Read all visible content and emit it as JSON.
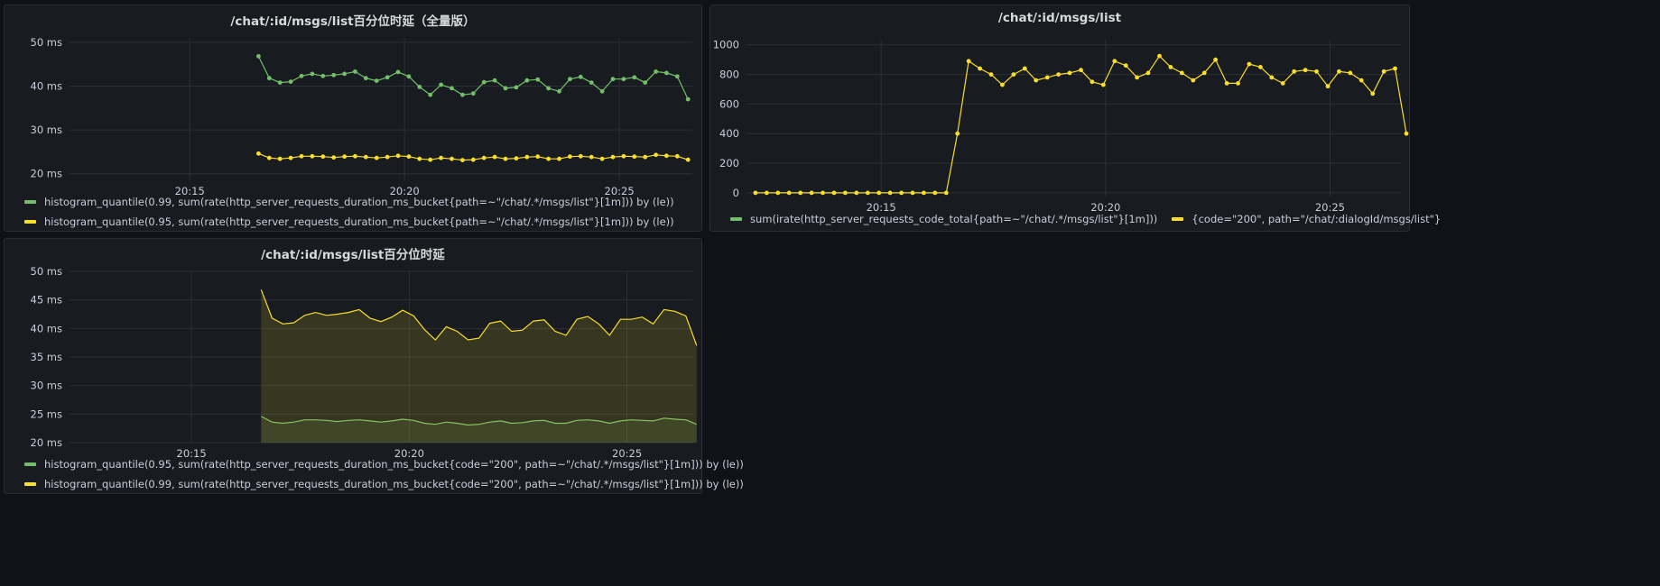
{
  "colors": {
    "green": "#73bf69",
    "yellow": "#fade2a"
  },
  "panels": {
    "p1": {
      "title": "/chat/:id/msgs/list百分位时延（全量版）",
      "legend": [
        "histogram_quantile(0.99, sum(rate(http_server_requests_duration_ms_bucket{path=~\"/chat/.*/msgs/list\"}[1m])) by (le))",
        "histogram_quantile(0.95, sum(rate(http_server_requests_duration_ms_bucket{path=~\"/chat/.*/msgs/list\"}[1m])) by (le))"
      ]
    },
    "p2": {
      "title": "/chat/:id/msgs/list",
      "legend": [
        "sum(irate(http_server_requests_code_total{path=~\"/chat/.*/msgs/list\"}[1m]))",
        "{code=\"200\", path=\"/chat/:dialogId/msgs/list\"}"
      ]
    },
    "p3": {
      "title": "/chat/:id/msgs/list百分位时延",
      "legend": [
        "histogram_quantile(0.95, sum(rate(http_server_requests_duration_ms_bucket{code=\"200\", path=~\"/chat/.*/msgs/list\"}[1m])) by (le))",
        "histogram_quantile(0.99, sum(rate(http_server_requests_duration_ms_bucket{code=\"200\", path=~\"/chat/.*/msgs/list\"}[1m])) by (le))"
      ]
    }
  },
  "chart_data": [
    {
      "type": "line",
      "title": "/chat/:id/msgs/list百分位时延（全量版）",
      "x_ticks": [
        "20:15",
        "20:20",
        "20:25"
      ],
      "y_ticks": [
        "20 ms",
        "30 ms",
        "40 ms",
        "50 ms"
      ],
      "ylim": [
        18.5,
        51
      ],
      "x_range_minutes": [
        12.2,
        26.7
      ],
      "x_start_minutes": 16.6,
      "x_step_minutes": 0.25,
      "points": true,
      "series": [
        {
          "name": "histogram_quantile(0.99, sum(rate(http_server_requests_duration_ms_bucket{path=~\"/chat/.*/msgs/list\"}[1m])) by (le))",
          "color": "green",
          "values": [
            46.8,
            41.8,
            40.8,
            41,
            42.3,
            42.8,
            42.3,
            42.5,
            42.8,
            43.3,
            41.8,
            41.2,
            42,
            43.2,
            42.2,
            39.8,
            38,
            40.3,
            39.5,
            38,
            38.3,
            40.9,
            41.3,
            39.5,
            39.7,
            41.3,
            41.5,
            39.5,
            38.8,
            41.6,
            42.1,
            40.8,
            38.8,
            41.6,
            41.6,
            42,
            40.8,
            43.3,
            43,
            42.2,
            37
          ]
        },
        {
          "name": "histogram_quantile(0.95, sum(rate(http_server_requests_duration_ms_bucket{path=~\"/chat/.*/msgs/list\"}[1m])) by (le))",
          "color": "yellow",
          "values": [
            24.6,
            23.6,
            23.4,
            23.6,
            24,
            24,
            23.9,
            23.7,
            23.9,
            24,
            23.8,
            23.6,
            23.8,
            24.1,
            23.9,
            23.4,
            23.2,
            23.6,
            23.4,
            23.1,
            23.2,
            23.6,
            23.8,
            23.4,
            23.5,
            23.8,
            23.9,
            23.4,
            23.4,
            23.9,
            24,
            23.8,
            23.4,
            23.8,
            24,
            23.9,
            23.8,
            24.3,
            24.1,
            24,
            23.2
          ]
        }
      ]
    },
    {
      "type": "line",
      "title": "/chat/:id/msgs/list",
      "x_ticks": [
        "20:15",
        "20:20",
        "20:25"
      ],
      "y_ticks": [
        "0",
        "200",
        "400",
        "600",
        "800",
        "1000"
      ],
      "ylim": [
        -25,
        1035
      ],
      "x_range_minutes": [
        12.0,
        26.6
      ],
      "x_start_minutes": 12.2,
      "x_step_minutes": 0.25,
      "points": true,
      "series": [
        {
          "name": "sum(irate(http_server_requests_code_total{path=~\"/chat/.*/msgs/list\"}[1m]))",
          "color": "green",
          "values": []
        },
        {
          "name": "{code=\"200\", path=\"/chat/:dialogId/msgs/list\"}",
          "color": "yellow",
          "values": [
            0,
            0,
            0,
            0,
            0,
            0,
            0,
            0,
            0,
            0,
            0,
            0,
            0,
            0,
            0,
            0,
            0,
            0,
            400,
            890,
            840,
            800,
            730,
            800,
            840,
            760,
            780,
            800,
            810,
            830,
            750,
            730,
            890,
            860,
            780,
            810,
            925,
            850,
            810,
            760,
            810,
            900,
            740,
            740,
            870,
            850,
            780,
            740,
            820,
            830,
            820,
            720,
            820,
            810,
            760,
            670,
            820,
            840,
            400
          ]
        }
      ]
    },
    {
      "type": "area",
      "title": "/chat/:id/msgs/list百分位时延",
      "x_ticks": [
        "20:15",
        "20:20",
        "20:25"
      ],
      "y_ticks": [
        "20 ms",
        "25 ms",
        "30 ms",
        "35 ms",
        "40 ms",
        "45 ms",
        "50 ms"
      ],
      "ylim": [
        20,
        50
      ],
      "x_range_minutes": [
        12.2,
        26.5
      ],
      "x_start_minutes": 16.6,
      "x_step_minutes": 0.25,
      "points": false,
      "series": [
        {
          "name": "histogram_quantile(0.95, sum(rate(http_server_requests_duration_ms_bucket{code=\"200\", path=~\"/chat/.*/msgs/list\"}[1m])) by (le))",
          "color": "green",
          "values": [
            24.6,
            23.6,
            23.4,
            23.6,
            24,
            24,
            23.9,
            23.7,
            23.9,
            24,
            23.8,
            23.6,
            23.8,
            24.1,
            23.9,
            23.4,
            23.2,
            23.6,
            23.4,
            23.1,
            23.2,
            23.6,
            23.8,
            23.4,
            23.5,
            23.8,
            23.9,
            23.4,
            23.4,
            23.9,
            24,
            23.8,
            23.4,
            23.8,
            24,
            23.9,
            23.8,
            24.3,
            24.1,
            24,
            23.2
          ]
        },
        {
          "name": "histogram_quantile(0.99, sum(rate(http_server_requests_duration_ms_bucket{code=\"200\", path=~\"/chat/.*/msgs/list\"}[1m])) by (le))",
          "color": "yellow",
          "values": [
            46.8,
            41.8,
            40.8,
            41,
            42.3,
            42.8,
            42.3,
            42.5,
            42.8,
            43.3,
            41.8,
            41.2,
            42,
            43.2,
            42.2,
            39.8,
            38,
            40.3,
            39.5,
            38,
            38.3,
            40.9,
            41.3,
            39.5,
            39.7,
            41.3,
            41.5,
            39.5,
            38.8,
            41.6,
            42.1,
            40.8,
            38.8,
            41.6,
            41.6,
            42,
            40.8,
            43.3,
            43,
            42.2,
            37
          ]
        }
      ]
    }
  ]
}
